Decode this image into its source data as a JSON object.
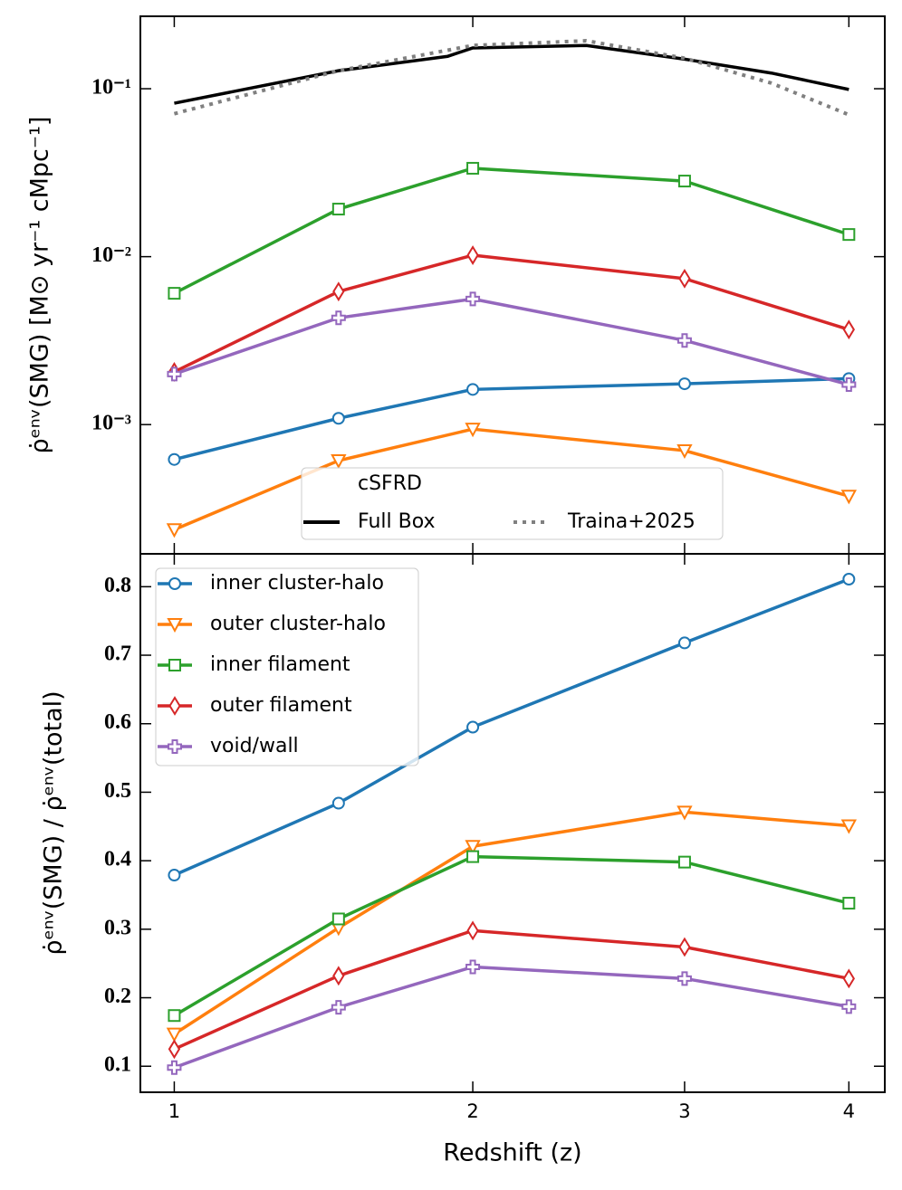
{
  "chart_data": [
    {
      "type": "line",
      "ylabel": "ρ̇ᵉⁿᵛ(SMG) [M⊙ yr⁻¹ cMpc⁻¹]",
      "yscale": "log",
      "ylim": [
        0.00017,
        0.27
      ],
      "yticks": [
        {
          "value": 0.1,
          "label": "10⁻¹"
        },
        {
          "value": 0.01,
          "label": "10⁻²"
        },
        {
          "value": 0.001,
          "label": "10⁻³"
        }
      ],
      "legend": "lower center",
      "legend_title": "cSFRD",
      "series": [
        {
          "name": "inner cluster-halo",
          "color": "#1f77b4",
          "marker": "circle",
          "x": [
            1,
            1.5,
            2,
            3,
            4
          ],
          "values": [
            0.00062,
            0.00109,
            0.00162,
            0.00175,
            0.00188
          ]
        },
        {
          "name": "outer cluster-halo",
          "color": "#ff7f0e",
          "marker": "triangle",
          "x": [
            1,
            1.5,
            2,
            3,
            4
          ],
          "values": [
            0.000237,
            0.00061,
            0.00094,
            0.0007,
            0.000375
          ]
        },
        {
          "name": "inner filament",
          "color": "#2ca02c",
          "marker": "square",
          "x": [
            1,
            1.5,
            2,
            3,
            4
          ],
          "values": [
            0.00605,
            0.0192,
            0.0336,
            0.0282,
            0.01355
          ]
        },
        {
          "name": "outer filament",
          "color": "#d62728",
          "marker": "diamond",
          "x": [
            1,
            1.5,
            2,
            3,
            4
          ],
          "values": [
            0.00206,
            0.0062,
            0.0102,
            0.0074,
            0.00368
          ]
        },
        {
          "name": "void/wall",
          "color": "#9467bd",
          "marker": "plus",
          "x": [
            1,
            1.5,
            2,
            3,
            4
          ],
          "values": [
            0.002,
            0.00432,
            0.0056,
            0.00317,
            0.00173
          ]
        },
        {
          "name": "Full Box",
          "color": "#000000",
          "linestyle": "solid",
          "legend": true,
          "x": [
            1,
            1.5,
            1.9,
            2,
            2.5,
            3,
            3.5,
            4
          ],
          "values": [
            0.082,
            0.128,
            0.156,
            0.175,
            0.181,
            0.15,
            0.124,
            0.099
          ]
        },
        {
          "name": "Traina+2025",
          "color": "#808080",
          "linestyle": "dotted",
          "legend": true,
          "x": [
            1,
            1.5,
            2,
            2.5,
            3,
            3.5,
            4
          ],
          "values": [
            0.071,
            0.128,
            0.181,
            0.193,
            0.152,
            0.108,
            0.07
          ]
        }
      ]
    },
    {
      "type": "line",
      "ylabel": "ρ̇ᵉⁿᵛ(SMG) / ρ̇ᵉⁿᵛ(total)",
      "xlabel": "Redshift (z)",
      "xscale": "log1p",
      "xlim": [
        0.91,
        4.25
      ],
      "xticks": [
        1,
        2,
        3,
        4
      ],
      "ylim": [
        0.062,
        0.848
      ],
      "yticks": [
        0.1,
        0.2,
        0.3,
        0.4,
        0.5,
        0.6,
        0.7,
        0.8
      ],
      "legend": "upper left",
      "series": [
        {
          "name": "inner cluster-halo",
          "color": "#1f77b4",
          "marker": "circle",
          "legend": true,
          "x": [
            1,
            1.5,
            2,
            3,
            4
          ],
          "values": [
            0.379,
            0.484,
            0.595,
            0.718,
            0.811
          ]
        },
        {
          "name": "outer cluster-halo",
          "color": "#ff7f0e",
          "marker": "triangle",
          "legend": true,
          "x": [
            1,
            1.5,
            2,
            3,
            4
          ],
          "values": [
            0.147,
            0.302,
            0.421,
            0.471,
            0.451
          ]
        },
        {
          "name": "inner filament",
          "color": "#2ca02c",
          "marker": "square",
          "legend": true,
          "x": [
            1,
            1.5,
            2,
            3,
            4
          ],
          "values": [
            0.174,
            0.315,
            0.406,
            0.398,
            0.338
          ]
        },
        {
          "name": "outer filament",
          "color": "#d62728",
          "marker": "diamond",
          "legend": true,
          "x": [
            1,
            1.5,
            2,
            3,
            4
          ],
          "values": [
            0.125,
            0.232,
            0.298,
            0.274,
            0.228
          ]
        },
        {
          "name": "void/wall",
          "color": "#9467bd",
          "marker": "plus",
          "legend": true,
          "x": [
            1,
            1.5,
            2,
            3,
            4
          ],
          "values": [
            0.098,
            0.186,
            0.245,
            0.228,
            0.187
          ]
        }
      ]
    }
  ]
}
